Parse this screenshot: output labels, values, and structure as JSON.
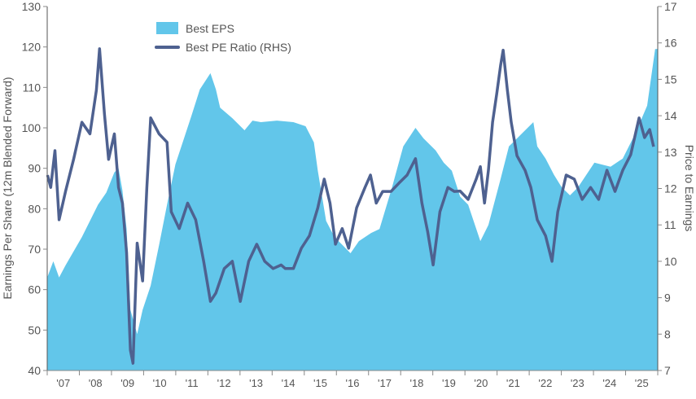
{
  "chart_data": {
    "type": "area+line",
    "title": "",
    "xlabel": "",
    "ylabel": "Earnings Per Share (12m Blended Forward)",
    "y2label": "Price to Earnings",
    "xlim": [
      2007,
      2026
    ],
    "ylim": [
      40,
      130
    ],
    "y2lim": [
      7,
      17
    ],
    "x_tick_labels": [
      "'07",
      "'08",
      "'09",
      "'10",
      "'11",
      "'12",
      "'13",
      "'14",
      "'15",
      "'16",
      "'17",
      "'18",
      "'19",
      "'20",
      "'21",
      "'22",
      "'23",
      "'24",
      "'25"
    ],
    "y_ticks": [
      40,
      50,
      60,
      70,
      80,
      90,
      100,
      110,
      120,
      130
    ],
    "y2_ticks": [
      7,
      8,
      9,
      10,
      11,
      12,
      13,
      14,
      15,
      16,
      17
    ],
    "grid": false,
    "legend_position": "top-left",
    "colors": {
      "eps": "#62c6ea",
      "pe": "#4e6190"
    },
    "series": [
      {
        "name": "Best EPS",
        "type": "area",
        "axis": "left",
        "points": [
          [
            2007.01,
            63.2
          ],
          [
            2007.19,
            67
          ],
          [
            2007.37,
            63
          ],
          [
            2007.57,
            66
          ],
          [
            2008.08,
            73
          ],
          [
            2008.58,
            81
          ],
          [
            2008.84,
            84
          ],
          [
            2009.09,
            89
          ],
          [
            2009.22,
            90
          ],
          [
            2009.34,
            84.5
          ],
          [
            2009.47,
            75
          ],
          [
            2009.59,
            55
          ],
          [
            2009.8,
            49
          ],
          [
            2009.97,
            55
          ],
          [
            2010.22,
            61
          ],
          [
            2010.48,
            71
          ],
          [
            2010.73,
            81
          ],
          [
            2010.99,
            91
          ],
          [
            2011.24,
            97
          ],
          [
            2011.49,
            103
          ],
          [
            2011.75,
            109.5
          ],
          [
            2012.08,
            113.5
          ],
          [
            2012.25,
            109.5
          ],
          [
            2012.38,
            105
          ],
          [
            2012.76,
            102.4
          ],
          [
            2013.14,
            99.4
          ],
          [
            2013.39,
            101.8
          ],
          [
            2013.65,
            101.4
          ],
          [
            2014.15,
            101.8
          ],
          [
            2014.66,
            101.4
          ],
          [
            2015.04,
            100.4
          ],
          [
            2015.3,
            96.4
          ],
          [
            2015.42,
            89.4
          ],
          [
            2015.68,
            77
          ],
          [
            2015.94,
            73
          ],
          [
            2016.19,
            71
          ],
          [
            2016.44,
            69
          ],
          [
            2016.7,
            72
          ],
          [
            2017.08,
            74
          ],
          [
            2017.34,
            75
          ],
          [
            2017.72,
            85
          ],
          [
            2018.08,
            95.4
          ],
          [
            2018.46,
            100
          ],
          [
            2018.71,
            97.4
          ],
          [
            2019.09,
            94.4
          ],
          [
            2019.34,
            91.4
          ],
          [
            2019.59,
            89.4
          ],
          [
            2019.85,
            83
          ],
          [
            2020.1,
            81
          ],
          [
            2020.48,
            72
          ],
          [
            2020.73,
            76
          ],
          [
            2021.11,
            87.4
          ],
          [
            2021.37,
            95.4
          ],
          [
            2021.75,
            98.4
          ],
          [
            2022.13,
            101.4
          ],
          [
            2022.25,
            95.4
          ],
          [
            2022.51,
            92.4
          ],
          [
            2022.77,
            88.4
          ],
          [
            2023.01,
            85.3
          ],
          [
            2023.27,
            83.3
          ],
          [
            2023.52,
            85.3
          ],
          [
            2024.03,
            91.4
          ],
          [
            2024.53,
            90.4
          ],
          [
            2024.91,
            92.4
          ],
          [
            2025.29,
            98.4
          ],
          [
            2025.67,
            105.5
          ],
          [
            2025.92,
            119.5
          ]
        ]
      },
      {
        "name": "Best PE Ratio (RHS)",
        "type": "line",
        "axis": "right",
        "points": [
          [
            2007.01,
            12.37
          ],
          [
            2007.11,
            12.03
          ],
          [
            2007.24,
            13.04
          ],
          [
            2007.37,
            11.14
          ],
          [
            2007.57,
            11.92
          ],
          [
            2007.82,
            12.8
          ],
          [
            2008.08,
            13.82
          ],
          [
            2008.33,
            13.5
          ],
          [
            2008.53,
            14.7
          ],
          [
            2008.63,
            15.84
          ],
          [
            2008.78,
            14.05
          ],
          [
            2008.91,
            12.8
          ],
          [
            2009.09,
            13.5
          ],
          [
            2009.22,
            12.03
          ],
          [
            2009.34,
            11.6
          ],
          [
            2009.47,
            10.24
          ],
          [
            2009.59,
            7.56
          ],
          [
            2009.67,
            7.2
          ],
          [
            2009.8,
            10.5
          ],
          [
            2009.97,
            9.46
          ],
          [
            2010.1,
            12.03
          ],
          [
            2010.22,
            13.94
          ],
          [
            2010.48,
            13.5
          ],
          [
            2010.73,
            13.27
          ],
          [
            2010.86,
            11.36
          ],
          [
            2011.11,
            10.9
          ],
          [
            2011.37,
            11.6
          ],
          [
            2011.62,
            11.14
          ],
          [
            2011.87,
            10.0
          ],
          [
            2012.08,
            8.9
          ],
          [
            2012.25,
            9.13
          ],
          [
            2012.51,
            9.8
          ],
          [
            2012.76,
            10.0
          ],
          [
            2013.01,
            8.9
          ],
          [
            2013.27,
            10.0
          ],
          [
            2013.52,
            10.47
          ],
          [
            2013.77,
            10.0
          ],
          [
            2014.03,
            9.8
          ],
          [
            2014.28,
            9.9
          ],
          [
            2014.41,
            9.8
          ],
          [
            2014.66,
            9.8
          ],
          [
            2014.91,
            10.36
          ],
          [
            2015.16,
            10.7
          ],
          [
            2015.42,
            11.47
          ],
          [
            2015.62,
            12.26
          ],
          [
            2015.8,
            11.6
          ],
          [
            2015.97,
            10.47
          ],
          [
            2016.18,
            10.9
          ],
          [
            2016.38,
            10.36
          ],
          [
            2016.63,
            11.47
          ],
          [
            2016.89,
            12.03
          ],
          [
            2017.06,
            12.37
          ],
          [
            2017.24,
            11.6
          ],
          [
            2017.44,
            11.92
          ],
          [
            2017.7,
            11.92
          ],
          [
            2017.95,
            12.15
          ],
          [
            2018.2,
            12.37
          ],
          [
            2018.46,
            12.82
          ],
          [
            2018.66,
            11.6
          ],
          [
            2018.84,
            10.81
          ],
          [
            2019.01,
            9.9
          ],
          [
            2019.22,
            11.36
          ],
          [
            2019.47,
            12.03
          ],
          [
            2019.67,
            11.92
          ],
          [
            2019.85,
            11.93
          ],
          [
            2020.1,
            11.7
          ],
          [
            2020.35,
            12.26
          ],
          [
            2020.48,
            12.6
          ],
          [
            2020.61,
            11.6
          ],
          [
            2020.73,
            12.5
          ],
          [
            2020.86,
            13.82
          ],
          [
            2020.99,
            14.6
          ],
          [
            2021.11,
            15.39
          ],
          [
            2021.19,
            15.8
          ],
          [
            2021.32,
            14.7
          ],
          [
            2021.44,
            13.82
          ],
          [
            2021.62,
            12.9
          ],
          [
            2021.87,
            12.5
          ],
          [
            2022.05,
            12.03
          ],
          [
            2022.25,
            11.14
          ],
          [
            2022.51,
            10.7
          ],
          [
            2022.71,
            10.0
          ],
          [
            2022.89,
            11.36
          ],
          [
            2023.15,
            12.37
          ],
          [
            2023.4,
            12.26
          ],
          [
            2023.65,
            11.7
          ],
          [
            2023.91,
            12.03
          ],
          [
            2024.16,
            11.7
          ],
          [
            2024.42,
            12.5
          ],
          [
            2024.67,
            11.92
          ],
          [
            2024.91,
            12.5
          ],
          [
            2025.16,
            12.93
          ],
          [
            2025.42,
            13.94
          ],
          [
            2025.59,
            13.4
          ],
          [
            2025.75,
            13.62
          ],
          [
            2025.87,
            13.15
          ]
        ]
      }
    ]
  }
}
